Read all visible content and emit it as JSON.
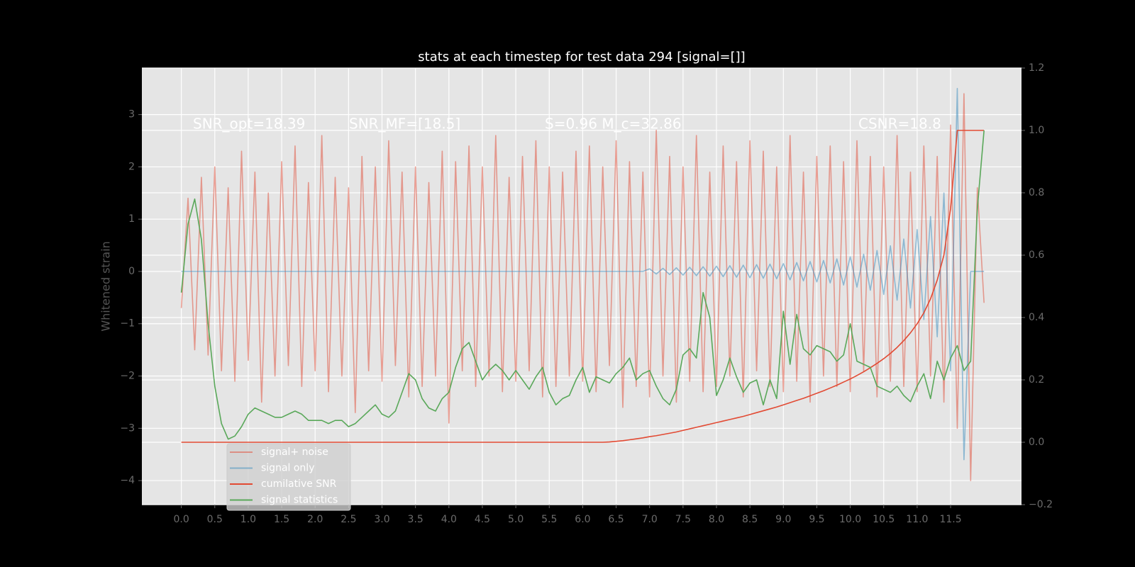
{
  "chart_data": {
    "type": "line",
    "title": "stats at each timestep for test data 294 [signal=[]]",
    "y_label": "Whitened strain",
    "annotations": [
      "SNR_opt=18.39",
      "SNR_MF=[18.5]",
      "S=0.96  M_c=32.86",
      "CSNR=18.8"
    ],
    "grid": true,
    "legend": "lower left",
    "xlim": [
      -0.59,
      12.56
    ],
    "ylim": [
      -4.46,
      3.89
    ],
    "y2lim": [
      -0.2,
      1.2
    ],
    "xticks": [
      {
        "value": 0,
        "label": "0.0"
      },
      0.5,
      {
        "value": 1,
        "label": "1.0"
      },
      1.5,
      {
        "value": 2,
        "label": "2.0"
      },
      2.5,
      {
        "value": 3,
        "label": "3.0"
      },
      3.5,
      {
        "value": 4,
        "label": "4.0"
      },
      4.5,
      {
        "value": 5,
        "label": "5.0"
      },
      5.5,
      {
        "value": 6,
        "label": "6.0"
      },
      6.5,
      {
        "value": 7,
        "label": "7.0"
      },
      7.5,
      {
        "value": 8,
        "label": "8.0"
      },
      8.5,
      {
        "value": 9,
        "label": "9.0"
      },
      9.5,
      {
        "value": 10,
        "label": "10.0"
      },
      10.5,
      {
        "value": 11,
        "label": "11.0"
      },
      11.5
    ],
    "yticks": [
      {
        "value": -4,
        "label": "−4"
      },
      {
        "value": -3,
        "label": "−3"
      },
      {
        "value": -2,
        "label": "−2"
      },
      {
        "value": -1,
        "label": "−1"
      },
      0,
      1,
      2,
      3
    ],
    "y2ticks": [
      {
        "value": -0.2,
        "label": "−0.2"
      },
      {
        "value": 0,
        "label": "0.0"
      },
      0.2,
      0.4,
      0.6,
      0.8,
      {
        "value": 1,
        "label": "1.0"
      },
      1.2
    ],
    "x": [
      0,
      0.1,
      0.2,
      0.3,
      0.4,
      0.5,
      0.6,
      0.7,
      0.8,
      0.9,
      1,
      1.1,
      1.2,
      1.3,
      1.4,
      1.5,
      1.6,
      1.7,
      1.8,
      1.9,
      2,
      2.1,
      2.2,
      2.3,
      2.4,
      2.5,
      2.6,
      2.7,
      2.8,
      2.9,
      3,
      3.1,
      3.2,
      3.3,
      3.4,
      3.5,
      3.6,
      3.7,
      3.8,
      3.9,
      4,
      4.1,
      4.2,
      4.3,
      4.4,
      4.5,
      4.6,
      4.7,
      4.8,
      4.9,
      5,
      5.1,
      5.2,
      5.3,
      5.4,
      5.5,
      5.6,
      5.7,
      5.8,
      5.9,
      6,
      6.1,
      6.2,
      6.3,
      6.4,
      6.5,
      6.6,
      6.7,
      6.8,
      6.9,
      7,
      7.1,
      7.2,
      7.3,
      7.4,
      7.5,
      7.6,
      7.7,
      7.8,
      7.9,
      8,
      8.1,
      8.2,
      8.3,
      8.4,
      8.5,
      8.6,
      8.7,
      8.8,
      8.9,
      9,
      9.1,
      9.2,
      9.3,
      9.4,
      9.5,
      9.6,
      9.7,
      9.8,
      9.9,
      10,
      10.1,
      10.2,
      10.3,
      10.4,
      10.5,
      10.6,
      10.7,
      10.8,
      10.9,
      11,
      11.1,
      11.2,
      11.3,
      11.4,
      11.5,
      11.6,
      11.7,
      11.8,
      11.9,
      12
    ],
    "series": [
      {
        "name": "signal+ noise",
        "color": "#e24a33",
        "opacity": 0.5,
        "values": [
          -0.7,
          1.4,
          -1.5,
          1.8,
          -1.6,
          2.0,
          -1.9,
          1.6,
          -2.1,
          2.3,
          -1.7,
          1.9,
          -2.5,
          1.5,
          -2.0,
          2.1,
          -1.8,
          2.4,
          -2.2,
          1.7,
          -1.9,
          2.6,
          -2.3,
          1.8,
          -2.0,
          1.6,
          -2.7,
          2.2,
          -1.9,
          2.0,
          -2.1,
          2.5,
          -1.8,
          1.9,
          -2.4,
          2.0,
          -2.2,
          1.7,
          -2.0,
          2.3,
          -2.9,
          2.1,
          -1.9,
          2.4,
          -2.2,
          2.0,
          -2.0,
          2.6,
          -2.3,
          1.8,
          -2.1,
          2.2,
          -1.9,
          2.5,
          -2.4,
          2.0,
          -2.2,
          1.9,
          -2.0,
          2.3,
          -2.1,
          2.4,
          -2.3,
          2.0,
          -1.8,
          2.5,
          -2.6,
          2.1,
          -2.2,
          1.9,
          -2.4,
          2.7,
          -2.0,
          2.2,
          -2.5,
          2.0,
          -2.1,
          2.6,
          -2.3,
          1.9,
          -2.2,
          2.4,
          -2.0,
          2.1,
          -2.4,
          2.5,
          -1.9,
          2.3,
          -2.2,
          2.0,
          -2.3,
          2.6,
          -2.1,
          1.9,
          -2.5,
          2.2,
          -2.0,
          2.4,
          -2.2,
          2.1,
          -2.3,
          2.5,
          -1.9,
          2.2,
          -2.4,
          2.0,
          -2.1,
          2.6,
          -2.2,
          1.9,
          -2.3,
          2.4,
          -2.0,
          2.2,
          -2.5,
          2.8,
          -3.0,
          3.4,
          -4.0,
          1.6,
          -0.6
        ]
      },
      {
        "name": "signal only",
        "color": "#348abd",
        "opacity": 0.5,
        "values": [
          0,
          0,
          0,
          0,
          0,
          0,
          0,
          0,
          0,
          0,
          0,
          0,
          0,
          0,
          0,
          0,
          0,
          0,
          0,
          0,
          0,
          0,
          0,
          0,
          0,
          0,
          0,
          0,
          0,
          0,
          0,
          0,
          0,
          0,
          0,
          0,
          0,
          0,
          0,
          0,
          0,
          0,
          0,
          0,
          0,
          0,
          0,
          0,
          0,
          0,
          0,
          0,
          0,
          0,
          0,
          0,
          0,
          0,
          0,
          0,
          0,
          0,
          0,
          0,
          0,
          0,
          0,
          0,
          0,
          0,
          0.05,
          -0.05,
          0.06,
          -0.06,
          0.07,
          -0.07,
          0.08,
          -0.08,
          0.09,
          -0.09,
          0.1,
          -0.1,
          0.11,
          -0.11,
          0.12,
          -0.12,
          0.13,
          -0.13,
          0.14,
          -0.14,
          0.15,
          -0.16,
          0.17,
          -0.18,
          0.19,
          -0.2,
          0.21,
          -0.22,
          0.24,
          -0.26,
          0.28,
          -0.3,
          0.33,
          -0.36,
          0.4,
          -0.44,
          0.49,
          -0.55,
          0.62,
          -0.7,
          0.8,
          -0.92,
          1.05,
          -1.25,
          1.5,
          -1.9,
          3.5,
          -3.6,
          0,
          0,
          0
        ]
      },
      {
        "name": "cumilative SNR",
        "color": "#e24a33",
        "opacity": 1,
        "axis": "y2",
        "values": [
          0,
          0,
          0,
          0,
          0,
          0,
          0,
          0,
          0,
          0,
          0,
          0,
          0,
          0,
          0,
          0,
          0,
          0,
          0,
          0,
          0,
          0,
          0,
          0,
          0,
          0,
          0,
          0,
          0,
          0,
          0,
          0,
          0,
          0,
          0,
          0,
          0,
          0,
          0,
          0,
          0,
          0,
          0,
          0,
          0,
          0,
          0,
          0,
          0,
          0,
          0,
          0,
          0,
          0,
          0,
          0,
          0,
          0,
          0,
          0,
          0,
          0,
          0,
          0,
          0.001,
          0.003,
          0.005,
          0.008,
          0.011,
          0.014,
          0.018,
          0.021,
          0.025,
          0.029,
          0.033,
          0.038,
          0.043,
          0.048,
          0.053,
          0.058,
          0.063,
          0.068,
          0.073,
          0.078,
          0.083,
          0.089,
          0.095,
          0.101,
          0.107,
          0.113,
          0.12,
          0.127,
          0.134,
          0.141,
          0.149,
          0.157,
          0.165,
          0.174,
          0.183,
          0.193,
          0.203,
          0.214,
          0.226,
          0.239,
          0.253,
          0.268,
          0.285,
          0.304,
          0.326,
          0.351,
          0.38,
          0.415,
          0.46,
          0.52,
          0.6,
          0.75,
          1.0,
          1.0,
          1.0,
          1.0,
          1.0
        ]
      },
      {
        "name": "signal statistics",
        "color": "#5aa85a",
        "opacity": 1,
        "axis": "y2",
        "values": [
          0.48,
          0.7,
          0.78,
          0.65,
          0.38,
          0.18,
          0.06,
          0.01,
          0.02,
          0.05,
          0.09,
          0.11,
          0.1,
          0.09,
          0.08,
          0.08,
          0.09,
          0.1,
          0.09,
          0.07,
          0.07,
          0.07,
          0.06,
          0.07,
          0.07,
          0.05,
          0.06,
          0.08,
          0.1,
          0.12,
          0.09,
          0.08,
          0.1,
          0.16,
          0.22,
          0.2,
          0.14,
          0.11,
          0.1,
          0.14,
          0.16,
          0.24,
          0.3,
          0.32,
          0.26,
          0.2,
          0.23,
          0.25,
          0.23,
          0.2,
          0.23,
          0.2,
          0.17,
          0.21,
          0.24,
          0.16,
          0.12,
          0.14,
          0.15,
          0.2,
          0.24,
          0.16,
          0.21,
          0.2,
          0.19,
          0.22,
          0.24,
          0.27,
          0.2,
          0.22,
          0.23,
          0.18,
          0.14,
          0.12,
          0.17,
          0.28,
          0.3,
          0.27,
          0.48,
          0.4,
          0.15,
          0.2,
          0.27,
          0.21,
          0.16,
          0.19,
          0.2,
          0.12,
          0.2,
          0.14,
          0.42,
          0.25,
          0.41,
          0.3,
          0.28,
          0.31,
          0.3,
          0.29,
          0.26,
          0.28,
          0.38,
          0.26,
          0.25,
          0.24,
          0.18,
          0.17,
          0.16,
          0.18,
          0.15,
          0.13,
          0.18,
          0.22,
          0.14,
          0.26,
          0.2,
          0.27,
          0.31,
          0.23,
          0.26,
          0.75,
          1.0
        ]
      }
    ]
  }
}
